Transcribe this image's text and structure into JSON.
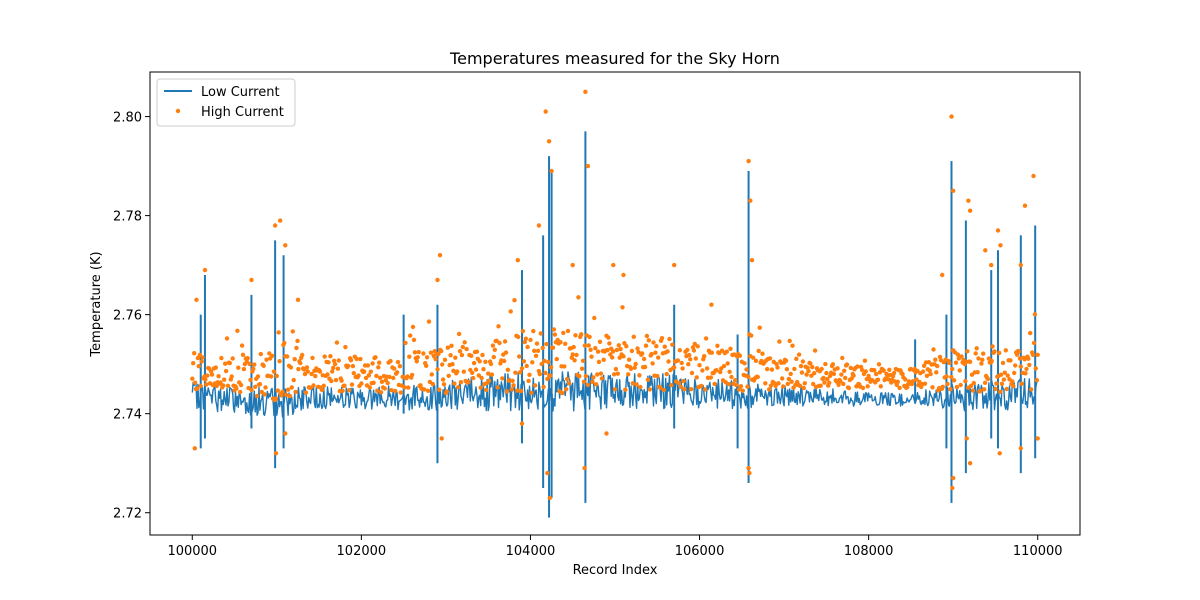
{
  "chart_data": {
    "type": "line",
    "title": "Temperatures measured for the Sky Horn",
    "xlabel": "Record Index",
    "ylabel": "Temperature (K)",
    "xlim": [
      99500,
      110500
    ],
    "ylim": [
      2.7155,
      2.809
    ],
    "x_ticks": [
      100000,
      102000,
      104000,
      106000,
      108000,
      110000
    ],
    "x_tick_labels": [
      "100000",
      "102000",
      "104000",
      "106000",
      "108000",
      "110000"
    ],
    "y_ticks": [
      2.72,
      2.74,
      2.76,
      2.78,
      2.8
    ],
    "y_tick_labels": [
      "2.72",
      "2.74",
      "2.76",
      "2.78",
      "2.80"
    ],
    "grid": false,
    "legend_position": "top-left",
    "x_start": 100000,
    "x_end": 110000,
    "baseline": [
      [
        100000,
        2.7465
      ],
      [
        100500,
        2.7455
      ],
      [
        101000,
        2.745
      ],
      [
        101500,
        2.746
      ],
      [
        102000,
        2.746
      ],
      [
        102500,
        2.746
      ],
      [
        103000,
        2.7465
      ],
      [
        103500,
        2.747
      ],
      [
        104000,
        2.7475
      ],
      [
        104500,
        2.7475
      ],
      [
        105000,
        2.7475
      ],
      [
        105500,
        2.7475
      ],
      [
        106000,
        2.747
      ],
      [
        106500,
        2.7465
      ],
      [
        107000,
        2.7465
      ],
      [
        107500,
        2.746
      ],
      [
        108000,
        2.7455
      ],
      [
        108500,
        2.7455
      ],
      [
        109000,
        2.746
      ],
      [
        109500,
        2.7465
      ],
      [
        110000,
        2.747
      ]
    ],
    "envelope": [
      [
        100000,
        0.006
      ],
      [
        100500,
        0.006
      ],
      [
        101000,
        0.007
      ],
      [
        101500,
        0.005
      ],
      [
        102000,
        0.005
      ],
      [
        102500,
        0.006
      ],
      [
        103000,
        0.007
      ],
      [
        103500,
        0.008
      ],
      [
        104000,
        0.009
      ],
      [
        104500,
        0.009
      ],
      [
        105000,
        0.008
      ],
      [
        105500,
        0.008
      ],
      [
        106000,
        0.007
      ],
      [
        106500,
        0.006
      ],
      [
        107000,
        0.005
      ],
      [
        107500,
        0.004
      ],
      [
        108000,
        0.003
      ],
      [
        108500,
        0.003
      ],
      [
        109000,
        0.006
      ],
      [
        109500,
        0.007
      ],
      [
        110000,
        0.007
      ]
    ],
    "spikes": [
      {
        "x": 100100,
        "low": 2.733,
        "high": 2.76
      },
      {
        "x": 100150,
        "low": 2.735,
        "high": 2.768
      },
      {
        "x": 100700,
        "low": 2.737,
        "high": 2.764
      },
      {
        "x": 100980,
        "low": 2.729,
        "high": 2.775
      },
      {
        "x": 101080,
        "low": 2.733,
        "high": 2.772
      },
      {
        "x": 102500,
        "low": 2.74,
        "high": 2.76
      },
      {
        "x": 102900,
        "low": 2.73,
        "high": 2.762
      },
      {
        "x": 103900,
        "low": 2.734,
        "high": 2.769
      },
      {
        "x": 104150,
        "low": 2.725,
        "high": 2.776
      },
      {
        "x": 104220,
        "low": 2.719,
        "high": 2.792
      },
      {
        "x": 104250,
        "low": 2.723,
        "high": 2.789
      },
      {
        "x": 104650,
        "low": 2.722,
        "high": 2.797
      },
      {
        "x": 105700,
        "low": 2.737,
        "high": 2.762
      },
      {
        "x": 106450,
        "low": 2.733,
        "high": 2.756
      },
      {
        "x": 106580,
        "low": 2.726,
        "high": 2.789
      },
      {
        "x": 108550,
        "low": 2.742,
        "high": 2.755
      },
      {
        "x": 108920,
        "low": 2.733,
        "high": 2.76
      },
      {
        "x": 108980,
        "low": 2.722,
        "high": 2.791
      },
      {
        "x": 109150,
        "low": 2.728,
        "high": 2.779
      },
      {
        "x": 109450,
        "low": 2.735,
        "high": 2.769
      },
      {
        "x": 109530,
        "low": 2.733,
        "high": 2.773
      },
      {
        "x": 109800,
        "low": 2.728,
        "high": 2.776
      },
      {
        "x": 109970,
        "low": 2.731,
        "high": 2.778
      }
    ],
    "high_outliers": [
      [
        100050,
        2.763
      ],
      [
        100150,
        2.769
      ],
      [
        100700,
        2.767
      ],
      [
        100980,
        2.778
      ],
      [
        101040,
        2.779
      ],
      [
        101100,
        2.774
      ],
      [
        101250,
        2.763
      ],
      [
        102900,
        2.767
      ],
      [
        102930,
        2.772
      ],
      [
        103850,
        2.771
      ],
      [
        104100,
        2.778
      ],
      [
        104180,
        2.801
      ],
      [
        104220,
        2.795
      ],
      [
        104250,
        2.789
      ],
      [
        104500,
        2.77
      ],
      [
        104650,
        2.805
      ],
      [
        104680,
        2.79
      ],
      [
        104980,
        2.77
      ],
      [
        105100,
        2.768
      ],
      [
        105700,
        2.77
      ],
      [
        106140,
        2.762
      ],
      [
        106580,
        2.791
      ],
      [
        106600,
        2.783
      ],
      [
        106620,
        2.771
      ],
      [
        108870,
        2.768
      ],
      [
        108980,
        2.8
      ],
      [
        109000,
        2.785
      ],
      [
        109180,
        2.783
      ],
      [
        109200,
        2.781
      ],
      [
        109380,
        2.773
      ],
      [
        109450,
        2.77
      ],
      [
        109530,
        2.777
      ],
      [
        109560,
        2.774
      ],
      [
        109800,
        2.77
      ],
      [
        109850,
        2.782
      ],
      [
        109950,
        2.788
      ]
    ],
    "low_outliers": [
      [
        100030,
        2.733
      ],
      [
        100990,
        2.732
      ],
      [
        101100,
        2.736
      ],
      [
        102950,
        2.735
      ],
      [
        103900,
        2.738
      ],
      [
        104200,
        2.728
      ],
      [
        104230,
        2.723
      ],
      [
        104640,
        2.729
      ],
      [
        104900,
        2.736
      ],
      [
        106580,
        2.729
      ],
      [
        106590,
        2.728
      ],
      [
        108990,
        2.725
      ],
      [
        109000,
        2.727
      ],
      [
        109160,
        2.735
      ],
      [
        109200,
        2.73
      ],
      [
        109550,
        2.732
      ],
      [
        109800,
        2.733
      ],
      [
        110000,
        2.735
      ]
    ],
    "series": [
      {
        "name": "Low Current",
        "style": "line",
        "color": "#1f77b4"
      },
      {
        "name": "High Current",
        "style": "scatter",
        "color": "#ff7f0e"
      }
    ]
  }
}
